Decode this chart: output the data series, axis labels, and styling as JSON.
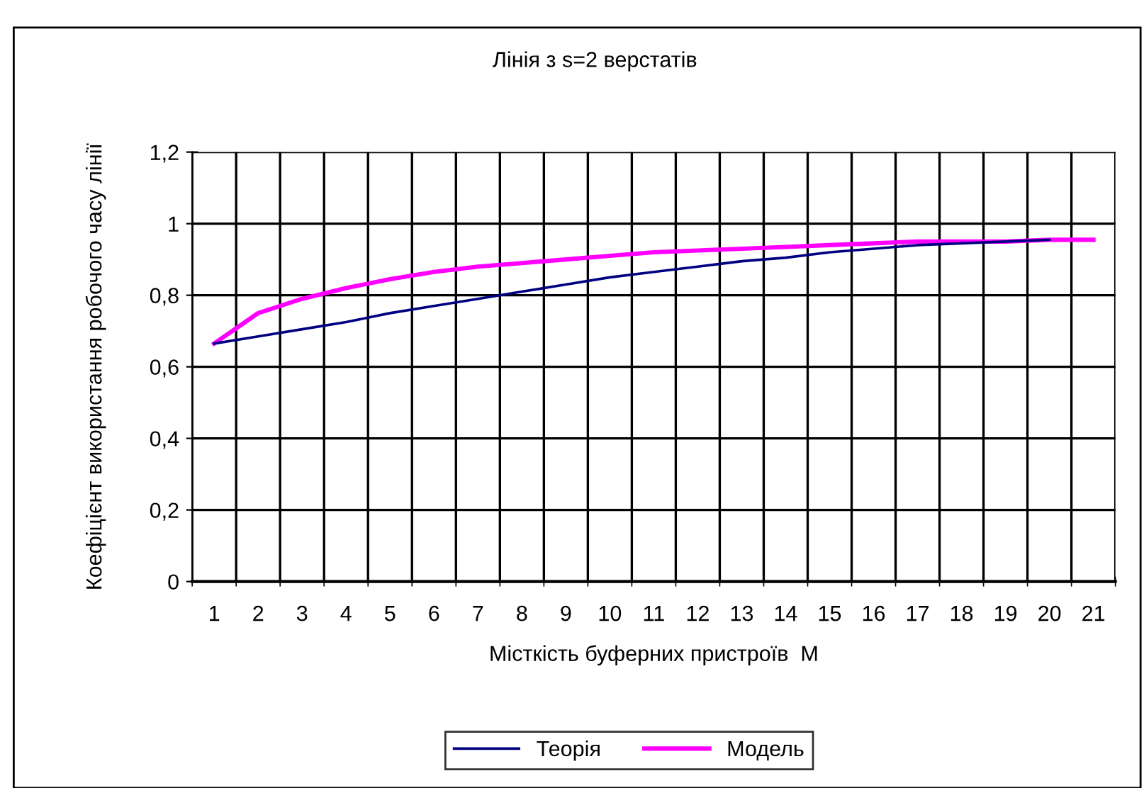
{
  "chart_data": {
    "type": "line",
    "title": "Лінія з s=2 верстатів",
    "xlabel": "Місткість буферних пристроїв  М",
    "ylabel": "Коефіцієнт використання робочого часу лінії",
    "categories": [
      "1",
      "2",
      "3",
      "4",
      "5",
      "6",
      "7",
      "8",
      "9",
      "10",
      "11",
      "12",
      "13",
      "14",
      "15",
      "16",
      "17",
      "18",
      "19",
      "20",
      "21"
    ],
    "series": [
      {
        "name": "Теорія",
        "color": "#000080",
        "values": [
          0.665,
          0.685,
          0.705,
          0.725,
          0.75,
          0.77,
          0.79,
          0.81,
          0.83,
          0.85,
          0.865,
          0.88,
          0.895,
          0.905,
          0.92,
          0.93,
          0.94,
          0.945,
          0.95,
          0.955,
          null
        ]
      },
      {
        "name": "Модель",
        "color": "#ff00ff",
        "values": [
          0.665,
          0.75,
          0.79,
          0.82,
          0.845,
          0.865,
          0.88,
          0.89,
          0.9,
          0.91,
          0.92,
          0.925,
          0.93,
          0.935,
          0.94,
          0.945,
          0.95,
          0.95,
          0.95,
          0.955,
          0.955
        ]
      }
    ],
    "ylim": [
      0,
      1.2
    ],
    "yticks": [
      0,
      {
        "value": 0.2,
        "label": "0,2"
      },
      {
        "value": 0.4,
        "label": "0,4"
      },
      {
        "value": 0.6,
        "label": "0,6"
      },
      {
        "value": 0.8,
        "label": "0,8"
      },
      1,
      {
        "value": 1.2,
        "label": "1,2"
      }
    ],
    "grid": true,
    "legend": "bottom",
    "marker": "none",
    "line_style": "solid"
  }
}
